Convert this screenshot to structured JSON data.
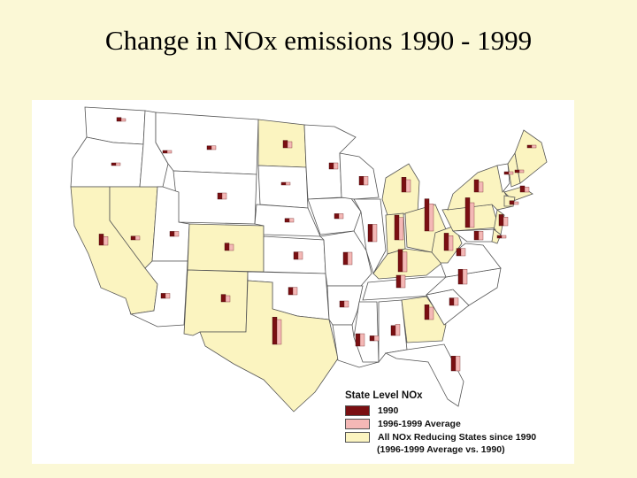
{
  "slide": {
    "title": "Change in NOx emissions 1990 - 1999"
  },
  "colors": {
    "background": "#fbf8d6",
    "state_reducing_fill": "#fbf4c0",
    "state_default_fill": "#ffffff",
    "state_border": "#555555",
    "bar_1990": "#7a0f12",
    "bar_1996_1999": "#f4b8b6"
  },
  "legend": {
    "title": "State Level NOx",
    "items": [
      {
        "label": "1990",
        "color": "#7a0f12"
      },
      {
        "label": "1996-1999 Average",
        "color": "#f4b8b6"
      },
      {
        "label": "All NOx Reducing States since 1990",
        "color": "#fbf4c0"
      }
    ],
    "note": "(1996-1999 Average vs. 1990)"
  },
  "map": {
    "states": [
      {
        "name": "WA",
        "reducing": false
      },
      {
        "name": "OR",
        "reducing": false
      },
      {
        "name": "CA",
        "reducing": true
      },
      {
        "name": "NV",
        "reducing": true
      },
      {
        "name": "ID",
        "reducing": false
      },
      {
        "name": "MT",
        "reducing": false
      },
      {
        "name": "WY",
        "reducing": false
      },
      {
        "name": "UT",
        "reducing": false
      },
      {
        "name": "AZ",
        "reducing": false
      },
      {
        "name": "CO",
        "reducing": true
      },
      {
        "name": "NM",
        "reducing": true
      },
      {
        "name": "ND",
        "reducing": true
      },
      {
        "name": "SD",
        "reducing": false
      },
      {
        "name": "NE",
        "reducing": false
      },
      {
        "name": "KS",
        "reducing": false
      },
      {
        "name": "OK",
        "reducing": false
      },
      {
        "name": "TX",
        "reducing": true
      },
      {
        "name": "MN",
        "reducing": false
      },
      {
        "name": "IA",
        "reducing": false
      },
      {
        "name": "MO",
        "reducing": false
      },
      {
        "name": "AR",
        "reducing": false
      },
      {
        "name": "LA",
        "reducing": false
      },
      {
        "name": "WI",
        "reducing": false
      },
      {
        "name": "IL",
        "reducing": false
      },
      {
        "name": "MI",
        "reducing": true
      },
      {
        "name": "IN",
        "reducing": true
      },
      {
        "name": "OH",
        "reducing": true
      },
      {
        "name": "KY",
        "reducing": true
      },
      {
        "name": "TN",
        "reducing": false
      },
      {
        "name": "MS",
        "reducing": false
      },
      {
        "name": "AL",
        "reducing": false
      },
      {
        "name": "GA",
        "reducing": true
      },
      {
        "name": "FL",
        "reducing": false
      },
      {
        "name": "SC",
        "reducing": false
      },
      {
        "name": "NC",
        "reducing": false
      },
      {
        "name": "VA",
        "reducing": false
      },
      {
        "name": "WV",
        "reducing": true
      },
      {
        "name": "PA",
        "reducing": true
      },
      {
        "name": "NY",
        "reducing": true
      },
      {
        "name": "VT",
        "reducing": false
      },
      {
        "name": "NH",
        "reducing": true
      },
      {
        "name": "ME",
        "reducing": true
      },
      {
        "name": "MA",
        "reducing": true
      },
      {
        "name": "CT",
        "reducing": true
      },
      {
        "name": "NJ",
        "reducing": true
      },
      {
        "name": "MD",
        "reducing": false
      },
      {
        "name": "DE",
        "reducing": true
      }
    ],
    "emissions": [
      {
        "state": "WA",
        "v1990": 3,
        "v1996_1999": 2
      },
      {
        "state": "OR",
        "v1990": 2,
        "v1996_1999": 1
      },
      {
        "state": "CA",
        "v1990": 9,
        "v1996_1999": 7
      },
      {
        "state": "NV",
        "v1990": 3,
        "v1996_1999": 3
      },
      {
        "state": "ID",
        "v1990": 2,
        "v1996_1999": 2
      },
      {
        "state": "MT",
        "v1990": 3,
        "v1996_1999": 3
      },
      {
        "state": "WY",
        "v1990": 5,
        "v1996_1999": 5
      },
      {
        "state": "UT",
        "v1990": 4,
        "v1996_1999": 4
      },
      {
        "state": "AZ",
        "v1990": 4,
        "v1996_1999": 4
      },
      {
        "state": "CO",
        "v1990": 6,
        "v1996_1999": 5
      },
      {
        "state": "NM",
        "v1990": 6,
        "v1996_1999": 5
      },
      {
        "state": "ND",
        "v1990": 6,
        "v1996_1999": 5
      },
      {
        "state": "SD",
        "v1990": 2,
        "v1996_1999": 2
      },
      {
        "state": "NE",
        "v1990": 3,
        "v1996_1999": 3
      },
      {
        "state": "KS",
        "v1990": 6,
        "v1996_1999": 6
      },
      {
        "state": "OK",
        "v1990": 6,
        "v1996_1999": 6
      },
      {
        "state": "TX",
        "v1990": 22,
        "v1996_1999": 20
      },
      {
        "state": "MN",
        "v1990": 5,
        "v1996_1999": 5
      },
      {
        "state": "IA",
        "v1990": 4,
        "v1996_1999": 4
      },
      {
        "state": "MO",
        "v1990": 10,
        "v1996_1999": 10
      },
      {
        "state": "AR",
        "v1990": 5,
        "v1996_1999": 5
      },
      {
        "state": "LA",
        "v1990": 10,
        "v1996_1999": 10
      },
      {
        "state": "WI",
        "v1990": 7,
        "v1996_1999": 7
      },
      {
        "state": "IL",
        "v1990": 14,
        "v1996_1999": 14
      },
      {
        "state": "MI",
        "v1990": 12,
        "v1996_1999": 10
      },
      {
        "state": "IN",
        "v1990": 20,
        "v1996_1999": 18
      },
      {
        "state": "OH",
        "v1990": 26,
        "v1996_1999": 22
      },
      {
        "state": "KY",
        "v1990": 18,
        "v1996_1999": 16
      },
      {
        "state": "TN",
        "v1990": 10,
        "v1996_1999": 10
      },
      {
        "state": "MS",
        "v1990": 4,
        "v1996_1999": 4
      },
      {
        "state": "AL",
        "v1990": 8,
        "v1996_1999": 9
      },
      {
        "state": "GA",
        "v1990": 12,
        "v1996_1999": 10
      },
      {
        "state": "FL",
        "v1990": 12,
        "v1996_1999": 12
      },
      {
        "state": "SC",
        "v1990": 6,
        "v1996_1999": 6
      },
      {
        "state": "NC",
        "v1990": 12,
        "v1996_1999": 12
      },
      {
        "state": "VA",
        "v1990": 6,
        "v1996_1999": 6
      },
      {
        "state": "WV",
        "v1990": 14,
        "v1996_1999": 12
      },
      {
        "state": "PA",
        "v1990": 24,
        "v1996_1999": 20
      },
      {
        "state": "NY",
        "v1990": 10,
        "v1996_1999": 8
      },
      {
        "state": "VT",
        "v1990": 1,
        "v1996_1999": 1
      },
      {
        "state": "NH",
        "v1990": 2,
        "v1996_1999": 1
      },
      {
        "state": "ME",
        "v1990": 2,
        "v1996_1999": 1
      },
      {
        "state": "MA",
        "v1990": 5,
        "v1996_1999": 4
      },
      {
        "state": "CT",
        "v1990": 3,
        "v1996_1999": 2
      },
      {
        "state": "NJ",
        "v1990": 9,
        "v1996_1999": 7
      },
      {
        "state": "MD",
        "v1990": 7,
        "v1996_1999": 7
      },
      {
        "state": "DE",
        "v1990": 2,
        "v1996_1999": 1
      }
    ]
  }
}
